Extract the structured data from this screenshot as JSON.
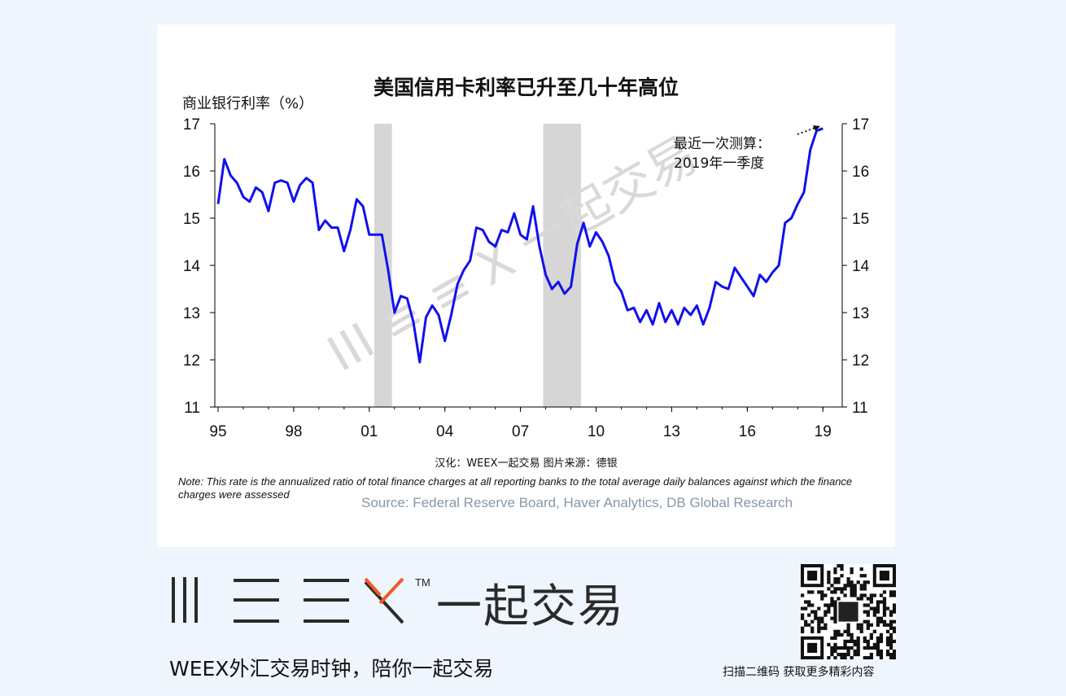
{
  "chart_data": {
    "type": "line",
    "title": "美国信用卡利率已升至几十年高位",
    "ylabel": "商业银行利率（%）",
    "ylim": [
      11,
      17
    ],
    "yticks": [
      11,
      12,
      13,
      14,
      15,
      16,
      17
    ],
    "xlim": [
      1995.0,
      2019.25
    ],
    "xticks": [
      {
        "value": 1995,
        "label": "95"
      },
      {
        "value": 1998,
        "label": "98"
      },
      {
        "value": 2001,
        "label": "01"
      },
      {
        "value": 2004,
        "label": "04"
      },
      {
        "value": 2007,
        "label": "07"
      },
      {
        "value": 2010,
        "label": "10"
      },
      {
        "value": 2013,
        "label": "13"
      },
      {
        "value": 2016,
        "label": "16"
      },
      {
        "value": 2019,
        "label": "19"
      }
    ],
    "recessions": [
      [
        2001.2,
        2001.9
      ],
      [
        2007.9,
        2009.4
      ]
    ],
    "series": [
      {
        "color": "#1010ee",
        "points": [
          [
            1995.0,
            15.3
          ],
          [
            1995.25,
            16.25
          ],
          [
            1995.5,
            15.9
          ],
          [
            1995.75,
            15.75
          ],
          [
            1996.0,
            15.45
          ],
          [
            1996.25,
            15.35
          ],
          [
            1996.5,
            15.65
          ],
          [
            1996.75,
            15.55
          ],
          [
            1997.0,
            15.15
          ],
          [
            1997.25,
            15.75
          ],
          [
            1997.5,
            15.8
          ],
          [
            1997.75,
            15.75
          ],
          [
            1998.0,
            15.35
          ],
          [
            1998.25,
            15.7
          ],
          [
            1998.5,
            15.85
          ],
          [
            1998.75,
            15.75
          ],
          [
            1999.0,
            14.75
          ],
          [
            1999.25,
            14.95
          ],
          [
            1999.5,
            14.8
          ],
          [
            1999.75,
            14.8
          ],
          [
            2000.0,
            14.3
          ],
          [
            2000.25,
            14.75
          ],
          [
            2000.5,
            15.4
          ],
          [
            2000.75,
            15.25
          ],
          [
            2001.0,
            14.65
          ],
          [
            2001.25,
            14.65
          ],
          [
            2001.5,
            14.65
          ],
          [
            2001.75,
            13.9
          ],
          [
            2002.0,
            13.0
          ],
          [
            2002.25,
            13.35
          ],
          [
            2002.5,
            13.3
          ],
          [
            2002.75,
            12.8
          ],
          [
            2003.0,
            11.95
          ],
          [
            2003.25,
            12.9
          ],
          [
            2003.5,
            13.15
          ],
          [
            2003.75,
            12.95
          ],
          [
            2004.0,
            12.4
          ],
          [
            2004.25,
            12.95
          ],
          [
            2004.5,
            13.6
          ],
          [
            2004.75,
            13.9
          ],
          [
            2005.0,
            14.1
          ],
          [
            2005.25,
            14.8
          ],
          [
            2005.5,
            14.75
          ],
          [
            2005.75,
            14.5
          ],
          [
            2006.0,
            14.4
          ],
          [
            2006.25,
            14.75
          ],
          [
            2006.5,
            14.7
          ],
          [
            2006.75,
            15.1
          ],
          [
            2007.0,
            14.65
          ],
          [
            2007.25,
            14.55
          ],
          [
            2007.5,
            15.25
          ],
          [
            2007.75,
            14.4
          ],
          [
            2008.0,
            13.8
          ],
          [
            2008.25,
            13.5
          ],
          [
            2008.5,
            13.65
          ],
          [
            2008.75,
            13.4
          ],
          [
            2009.0,
            13.55
          ],
          [
            2009.25,
            14.45
          ],
          [
            2009.5,
            14.9
          ],
          [
            2009.75,
            14.4
          ],
          [
            2010.0,
            14.7
          ],
          [
            2010.25,
            14.5
          ],
          [
            2010.5,
            14.2
          ],
          [
            2010.75,
            13.65
          ],
          [
            2011.0,
            13.45
          ],
          [
            2011.25,
            13.05
          ],
          [
            2011.5,
            13.1
          ],
          [
            2011.75,
            12.8
          ],
          [
            2012.0,
            13.05
          ],
          [
            2012.25,
            12.75
          ],
          [
            2012.5,
            13.2
          ],
          [
            2012.75,
            12.8
          ],
          [
            2013.0,
            13.05
          ],
          [
            2013.25,
            12.75
          ],
          [
            2013.5,
            13.1
          ],
          [
            2013.75,
            12.95
          ],
          [
            2014.0,
            13.15
          ],
          [
            2014.25,
            12.75
          ],
          [
            2014.5,
            13.1
          ],
          [
            2014.75,
            13.65
          ],
          [
            2015.0,
            13.55
          ],
          [
            2015.25,
            13.5
          ],
          [
            2015.5,
            13.95
          ],
          [
            2015.75,
            13.75
          ],
          [
            2016.0,
            13.55
          ],
          [
            2016.25,
            13.35
          ],
          [
            2016.5,
            13.8
          ],
          [
            2016.75,
            13.65
          ],
          [
            2017.0,
            13.85
          ],
          [
            2017.25,
            14.0
          ],
          [
            2017.5,
            14.9
          ],
          [
            2017.75,
            15.0
          ],
          [
            2018.0,
            15.3
          ],
          [
            2018.25,
            15.55
          ],
          [
            2018.5,
            16.45
          ],
          [
            2018.75,
            16.85
          ],
          [
            2019.0,
            16.9
          ]
        ]
      }
    ],
    "annotation": {
      "line1": "最近一次测算：",
      "line2": "2019年一季度"
    }
  },
  "credit": "汉化：WEEX一起交易   图片来源：德银",
  "note": "Note: This rate is the annualized ratio of total finance charges at all reporting banks to the total average daily balances against which the finance charges were assessed",
  "source": "Source: Federal Reserve Board, Haver Analytics, DB Global Research",
  "watermark": "一起交易",
  "brand": {
    "tm": "TM",
    "cn": "一起交易",
    "slogan": "WEEX外汇交易时钟，陪你一起交易",
    "qr_caption": "扫描二维码 获取更多精彩内容",
    "accent_color": "#f05a22"
  }
}
